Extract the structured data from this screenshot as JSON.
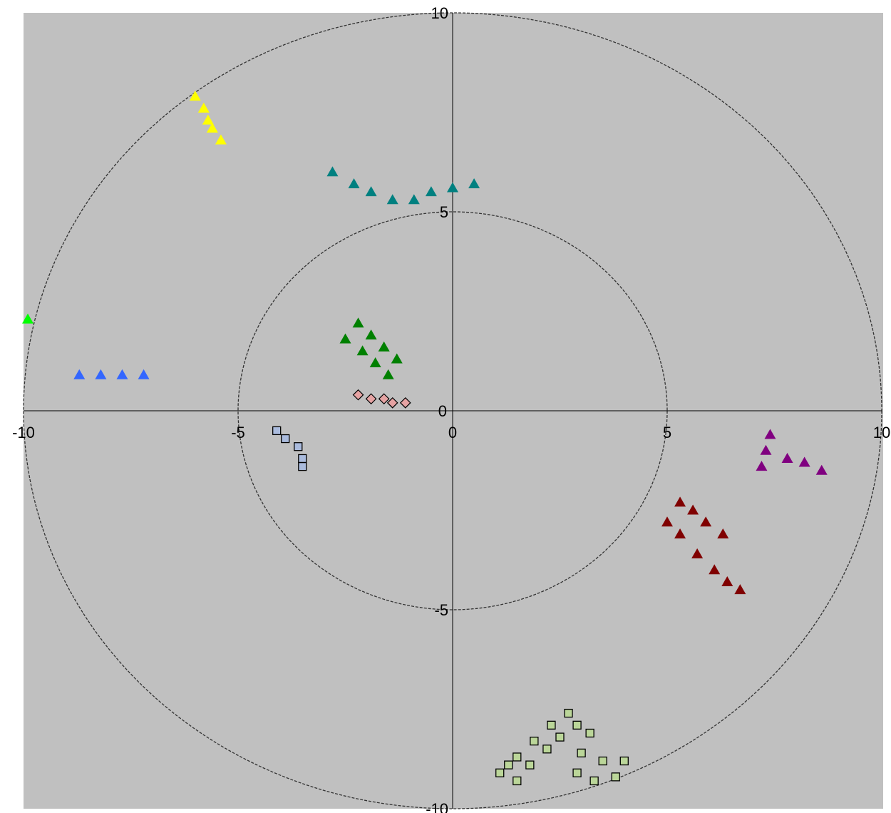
{
  "chart_data": {
    "type": "scatter",
    "title": "",
    "xlabel": "",
    "ylabel": "",
    "xlim": [
      -10,
      10
    ],
    "ylim": [
      -10,
      10
    ],
    "grid": false,
    "reference_circles": [
      5,
      10
    ],
    "plot_background": "#c0c0c0",
    "x_tick_labels": [
      "-10",
      "-5",
      "0",
      "5",
      "10"
    ],
    "y_tick_labels": [
      "10",
      "5",
      "0",
      "-5",
      "-10"
    ],
    "series": [
      {
        "marker": "triangle",
        "color": "#ffff00",
        "points": [
          [
            -6.0,
            7.9
          ],
          [
            -5.8,
            7.6
          ],
          [
            -5.7,
            7.3
          ],
          [
            -5.6,
            7.1
          ],
          [
            -5.4,
            6.8
          ]
        ]
      },
      {
        "marker": "triangle",
        "color": "#008080",
        "points": [
          [
            -2.8,
            6.0
          ],
          [
            -2.3,
            5.7
          ],
          [
            -1.9,
            5.5
          ],
          [
            -1.4,
            5.3
          ],
          [
            -0.9,
            5.3
          ],
          [
            -0.5,
            5.5
          ],
          [
            0.0,
            5.6
          ],
          [
            0.5,
            5.7
          ]
        ]
      },
      {
        "marker": "triangle",
        "color": "#00ff00",
        "points": [
          [
            -9.9,
            2.3
          ]
        ]
      },
      {
        "marker": "triangle",
        "color": "#3366ff",
        "points": [
          [
            -8.7,
            0.9
          ],
          [
            -8.2,
            0.9
          ],
          [
            -7.7,
            0.9
          ],
          [
            -7.2,
            0.9
          ]
        ]
      },
      {
        "marker": "triangle",
        "color": "#008000",
        "points": [
          [
            -2.2,
            2.2
          ],
          [
            -2.5,
            1.8
          ],
          [
            -1.9,
            1.9
          ],
          [
            -2.1,
            1.5
          ],
          [
            -1.6,
            1.6
          ],
          [
            -1.8,
            1.2
          ],
          [
            -1.3,
            1.3
          ],
          [
            -1.5,
            0.9
          ]
        ]
      },
      {
        "marker": "diamond",
        "color": "#e6a3a3",
        "points": [
          [
            -2.2,
            0.4
          ],
          [
            -1.9,
            0.3
          ],
          [
            -1.6,
            0.3
          ],
          [
            -1.4,
            0.2
          ],
          [
            -1.1,
            0.2
          ]
        ]
      },
      {
        "marker": "square",
        "color": "#aabbdd",
        "points": [
          [
            -4.1,
            -0.5
          ],
          [
            -3.9,
            -0.7
          ],
          [
            -3.6,
            -0.9
          ],
          [
            -3.5,
            -1.2
          ],
          [
            -3.5,
            -1.4
          ]
        ]
      },
      {
        "marker": "triangle",
        "color": "#800080",
        "points": [
          [
            7.4,
            -0.6
          ],
          [
            7.3,
            -1.0
          ],
          [
            7.8,
            -1.2
          ],
          [
            8.2,
            -1.3
          ],
          [
            8.6,
            -1.5
          ],
          [
            7.2,
            -1.4
          ]
        ]
      },
      {
        "marker": "triangle",
        "color": "#800000",
        "points": [
          [
            5.3,
            -2.3
          ],
          [
            5.6,
            -2.5
          ],
          [
            5.9,
            -2.8
          ],
          [
            6.3,
            -3.1
          ],
          [
            5.0,
            -2.8
          ],
          [
            5.3,
            -3.1
          ],
          [
            5.7,
            -3.6
          ],
          [
            6.1,
            -4.0
          ],
          [
            6.4,
            -4.3
          ],
          [
            6.7,
            -4.5
          ]
        ]
      },
      {
        "marker": "square",
        "color": "#bbd699",
        "points": [
          [
            2.7,
            -7.6
          ],
          [
            2.9,
            -7.9
          ],
          [
            3.2,
            -8.1
          ],
          [
            2.3,
            -7.9
          ],
          [
            1.9,
            -8.3
          ],
          [
            2.5,
            -8.2
          ],
          [
            2.2,
            -8.5
          ],
          [
            1.5,
            -8.7
          ],
          [
            3.0,
            -8.6
          ],
          [
            1.3,
            -8.9
          ],
          [
            3.5,
            -8.8
          ],
          [
            4.0,
            -8.8
          ],
          [
            1.8,
            -8.9
          ],
          [
            1.1,
            -9.1
          ],
          [
            1.5,
            -9.3
          ],
          [
            2.9,
            -9.1
          ],
          [
            3.3,
            -9.3
          ],
          [
            3.8,
            -9.2
          ]
        ]
      }
    ]
  }
}
